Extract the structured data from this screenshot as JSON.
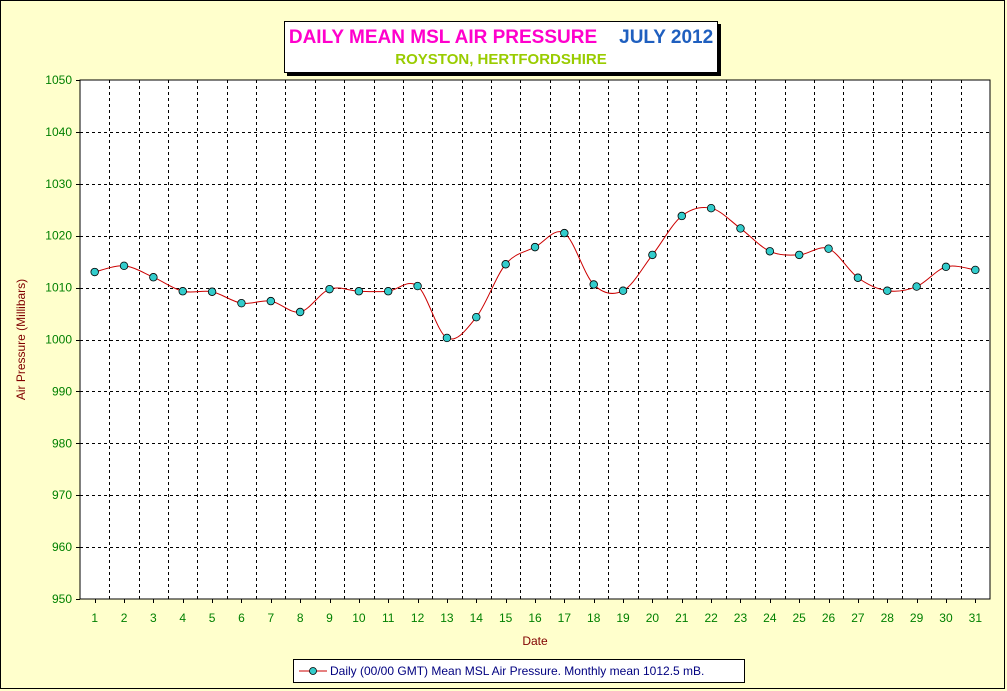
{
  "title": {
    "main": "DAILY MEAN MSL AIR PRESSURE",
    "period": "JULY 2012",
    "subtitle": "ROYSTON, HERTFORDSHIRE"
  },
  "colors": {
    "title_main": "#ff00cc",
    "title_period": "#1f5fbf",
    "subtitle": "#99cc00",
    "tick_labels": "#008000",
    "axis_titles": "#800000",
    "line": "#cc0000",
    "marker_fill": "#33cccc",
    "background": "#ffffcc",
    "legend_text": "#000080"
  },
  "chart_data": {
    "type": "line",
    "title": "DAILY MEAN MSL AIR PRESSURE",
    "subtitle": "ROYSTON, HERTFORDSHIRE",
    "xlabel": "Date",
    "ylabel": "Air Pressure (Millibars)",
    "ylim": [
      950,
      1050
    ],
    "ystep": 10,
    "grid": true,
    "legend_position": "bottom",
    "categories": [
      "1",
      "2",
      "3",
      "4",
      "5",
      "6",
      "7",
      "8",
      "9",
      "10",
      "11",
      "12",
      "13",
      "14",
      "15",
      "16",
      "17",
      "18",
      "19",
      "20",
      "21",
      "22",
      "23",
      "24",
      "25",
      "26",
      "27",
      "28",
      "29",
      "30",
      "31"
    ],
    "series": [
      {
        "name": "Daily (00/00 GMT) Mean MSL Air Pressure. Monthly mean 1012.5 mB.",
        "values": [
          1013.0,
          1014.2,
          1012.0,
          1009.3,
          1009.2,
          1007.0,
          1007.4,
          1005.3,
          1009.7,
          1009.3,
          1009.3,
          1010.3,
          1000.3,
          1004.3,
          1014.5,
          1017.8,
          1020.5,
          1010.6,
          1009.4,
          1016.3,
          1023.8,
          1025.3,
          1021.4,
          1017.0,
          1016.3,
          1017.5,
          1011.9,
          1009.4,
          1010.2,
          1014.0,
          1013.4
        ]
      }
    ]
  }
}
